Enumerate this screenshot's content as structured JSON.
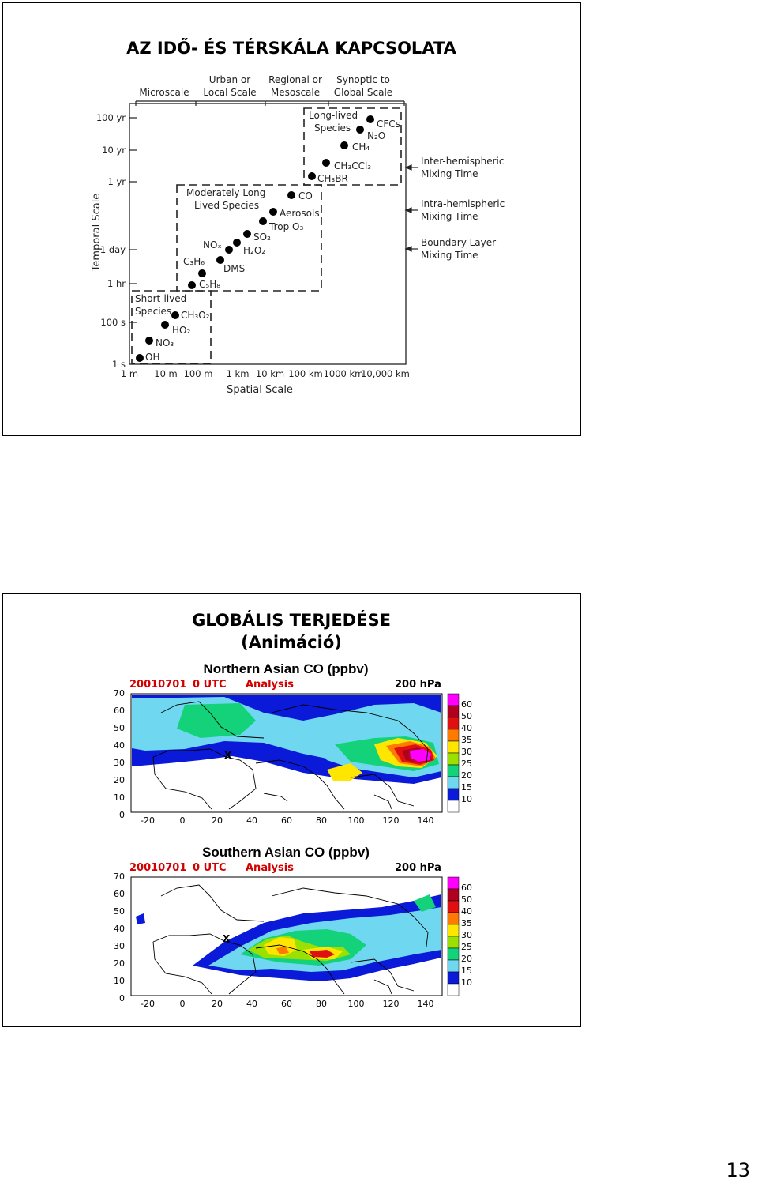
{
  "slide1": {
    "title": "AZ IDŐ- ÉS TÉRSKÁLA KAPCSOLATA",
    "scale_headers": [
      "Microscale",
      "Urban or",
      "Local Scale",
      "Regional or",
      "Mesoscale",
      "Synoptic to",
      "Global Scale"
    ],
    "y_ticks": [
      "100 yr",
      "10 yr",
      "1 yr",
      "1 day",
      "1 hr",
      "100 s",
      "1 s"
    ],
    "x_ticks": [
      "1 m",
      "10 m",
      "100 m",
      "1 km",
      "10 km",
      "100 km",
      "1000 km",
      "10,000 km"
    ],
    "y_axis_label": "Temporal Scale",
    "x_axis_label": "Spatial Scale",
    "group_labels": {
      "long_lived_1": "Long-lived",
      "long_lived_2": "Species",
      "moderately_1": "Moderately Long",
      "moderately_2": "Lived Species",
      "short_lived_1": "Short-lived",
      "short_lived_2": "Species"
    },
    "species": {
      "cfcs": "CFCs",
      "n2o": "N₂O",
      "ch4": "CH₄",
      "ch3ccl3": "CH₃CCl₃",
      "ch3br": "CH₃BR",
      "co": "CO",
      "aerosols": "Aerosols",
      "trop_o3": "Trop O₃",
      "so2": "SO₂",
      "h2o2": "H₂O₂",
      "nox": "NOₓ",
      "dms": "DMS",
      "c3h6": "C₃H₆",
      "c5h8": "C₅H₈",
      "ch3o2": "CH₃O₂",
      "ho2": "HO₂",
      "no3": "NO₃",
      "oh": "OH"
    },
    "mixing_labels": {
      "inter_1": "Inter-hemispheric",
      "inter_2": "Mixing Time",
      "intra_1": "Intra-hemispheric",
      "intra_2": "Mixing Time",
      "bl_1": "Boundary Layer",
      "bl_2": "Mixing Time"
    }
  },
  "slide2": {
    "title_line1": "GLOBÁLIS TERJEDÉSE",
    "title_line2": "(Animáció)",
    "panels": [
      {
        "title": "Northern Asian CO (ppbv)",
        "date": "20010701",
        "time": "0 UTC",
        "kind": "Analysis",
        "level": "200 hPa",
        "lat_ticks": [
          "70",
          "60",
          "50",
          "40",
          "30",
          "20",
          "10",
          "0"
        ],
        "lon_ticks": [
          "-20",
          "0",
          "20",
          "40",
          "60",
          "80",
          "100",
          "120",
          "140"
        ],
        "legend": [
          "60",
          "50",
          "40",
          "35",
          "30",
          "25",
          "20",
          "15",
          "10"
        ]
      },
      {
        "title": "Southern Asian CO (ppbv)",
        "date": "20010701",
        "time": "0 UTC",
        "kind": "Analysis",
        "level": "200 hPa",
        "lat_ticks": [
          "70",
          "60",
          "50",
          "40",
          "30",
          "20",
          "10",
          "0"
        ],
        "lon_ticks": [
          "-20",
          "0",
          "20",
          "40",
          "60",
          "80",
          "100",
          "120",
          "140"
        ],
        "legend": [
          "60",
          "50",
          "40",
          "35",
          "30",
          "25",
          "20",
          "15",
          "10"
        ]
      }
    ],
    "legend_colors": [
      "#ff00ff",
      "#b00020",
      "#e01010",
      "#ff7a00",
      "#ffe600",
      "#9be000",
      "#14d27a",
      "#6fd8f0",
      "#0a1ad8",
      "#ffffff"
    ]
  },
  "page_number": "13"
}
